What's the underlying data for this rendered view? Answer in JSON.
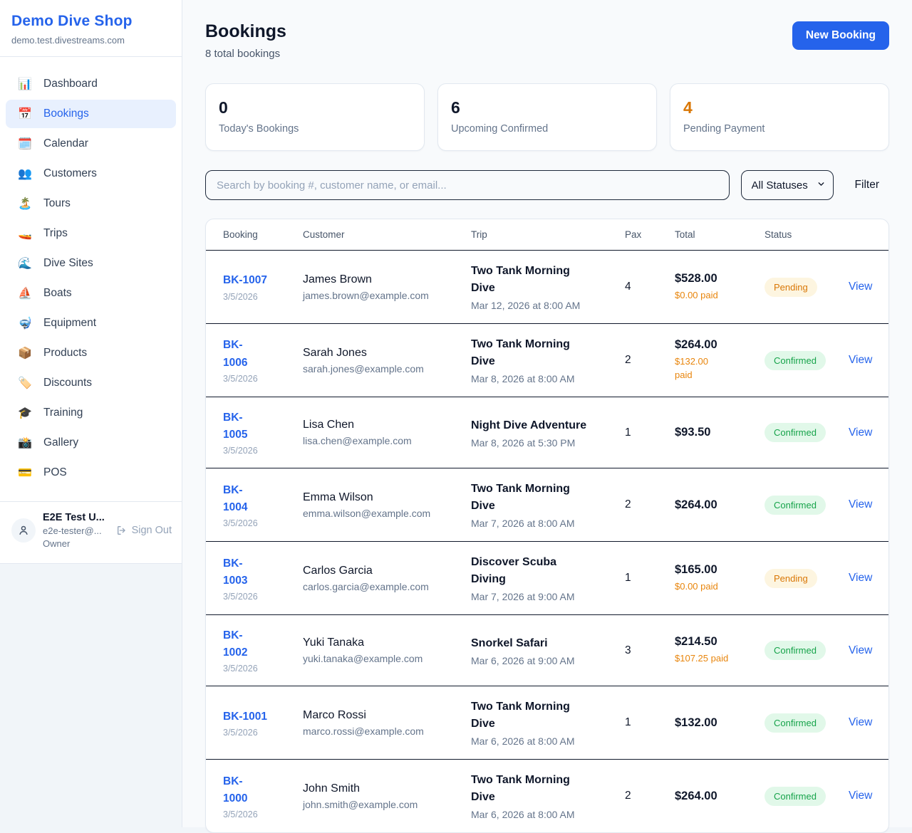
{
  "sidebar": {
    "brand": "Demo Dive Shop",
    "domain": "demo.test.divestreams.com",
    "items": [
      {
        "icon": "📊",
        "icon_name": "bar-chart-icon",
        "label": "Dashboard",
        "active": false
      },
      {
        "icon": "📅",
        "icon_name": "calendar-icon",
        "label": "Bookings",
        "active": true
      },
      {
        "icon": "🗓️",
        "icon_name": "spiral-calendar-icon",
        "label": "Calendar",
        "active": false
      },
      {
        "icon": "👥",
        "icon_name": "people-icon",
        "label": "Customers",
        "active": false
      },
      {
        "icon": "🏝️",
        "icon_name": "island-icon",
        "label": "Tours",
        "active": false
      },
      {
        "icon": "🚤",
        "icon_name": "speedboat-icon",
        "label": "Trips",
        "active": false
      },
      {
        "icon": "🌊",
        "icon_name": "wave-icon",
        "label": "Dive Sites",
        "active": false
      },
      {
        "icon": "⛵",
        "icon_name": "sailboat-icon",
        "label": "Boats",
        "active": false
      },
      {
        "icon": "🤿",
        "icon_name": "diving-mask-icon",
        "label": "Equipment",
        "active": false
      },
      {
        "icon": "📦",
        "icon_name": "package-icon",
        "label": "Products",
        "active": false
      },
      {
        "icon": "🏷️",
        "icon_name": "label-icon",
        "label": "Discounts",
        "active": false
      },
      {
        "icon": "🎓",
        "icon_name": "graduation-cap-icon",
        "label": "Training",
        "active": false
      },
      {
        "icon": "📸",
        "icon_name": "camera-icon",
        "label": "Gallery",
        "active": false
      },
      {
        "icon": "💳",
        "icon_name": "credit-card-icon",
        "label": "POS",
        "active": false
      }
    ],
    "user": {
      "name": "E2E Test U...",
      "email": "e2e-tester@...",
      "role": "Owner",
      "sign_out_label": "Sign Out"
    }
  },
  "header": {
    "title": "Bookings",
    "subtitle": "8 total bookings",
    "new_booking_label": "New Booking"
  },
  "stats": [
    {
      "value": "0",
      "label": "Today's Bookings",
      "value_color": "#0f172a"
    },
    {
      "value": "6",
      "label": "Upcoming Confirmed",
      "value_color": "#0f172a"
    },
    {
      "value": "4",
      "label": "Pending Payment",
      "value_color": "#d97706"
    }
  ],
  "filters": {
    "search_placeholder": "Search by booking #, customer name, or email...",
    "status_selected": "All Statuses",
    "filter_label": "Filter"
  },
  "table": {
    "columns": [
      "Booking",
      "Customer",
      "Trip",
      "Pax",
      "Total",
      "Status"
    ],
    "view_label": "View",
    "rows": [
      {
        "id": "BK-1007",
        "date": "3/5/2026",
        "customer": "James Brown",
        "email": "james.brown@example.com",
        "trip": "Two Tank Morning Dive",
        "trip_time": "Mar 12, 2026 at 8:00 AM",
        "pax": "4",
        "total": "$528.00",
        "paid": "$0.00 paid",
        "status": "Pending"
      },
      {
        "id": "BK-\n1006",
        "date": "3/5/2026",
        "customer": "Sarah Jones",
        "email": "sarah.jones@example.com",
        "trip": "Two Tank Morning Dive",
        "trip_time": "Mar 8, 2026 at 8:00 AM",
        "pax": "2",
        "total": "$264.00",
        "paid": "$132.00\npaid",
        "status": "Confirmed"
      },
      {
        "id": "BK-\n1005",
        "date": "3/5/2026",
        "customer": "Lisa Chen",
        "email": "lisa.chen@example.com",
        "trip": "Night Dive Adventure",
        "trip_time": "Mar 8, 2026 at 5:30 PM",
        "pax": "1",
        "total": "$93.50",
        "paid": "",
        "status": "Confirmed"
      },
      {
        "id": "BK-\n1004",
        "date": "3/5/2026",
        "customer": "Emma Wilson",
        "email": "emma.wilson@example.com",
        "trip": "Two Tank Morning Dive",
        "trip_time": "Mar 7, 2026 at 8:00 AM",
        "pax": "2",
        "total": "$264.00",
        "paid": "",
        "status": "Confirmed"
      },
      {
        "id": "BK-\n1003",
        "date": "3/5/2026",
        "customer": "Carlos Garcia",
        "email": "carlos.garcia@example.com",
        "trip": "Discover Scuba Diving",
        "trip_time": "Mar 7, 2026 at 9:00 AM",
        "pax": "1",
        "total": "$165.00",
        "paid": "$0.00 paid",
        "status": "Pending"
      },
      {
        "id": "BK-\n1002",
        "date": "3/5/2026",
        "customer": "Yuki Tanaka",
        "email": "yuki.tanaka@example.com",
        "trip": "Snorkel Safari",
        "trip_time": "Mar 6, 2026 at 9:00 AM",
        "pax": "3",
        "total": "$214.50",
        "paid": "$107.25 paid",
        "status": "Confirmed"
      },
      {
        "id": "BK-1001",
        "date": "3/5/2026",
        "customer": "Marco Rossi",
        "email": "marco.rossi@example.com",
        "trip": "Two Tank Morning Dive",
        "trip_time": "Mar 6, 2026 at 8:00 AM",
        "pax": "1",
        "total": "$132.00",
        "paid": "",
        "status": "Confirmed"
      },
      {
        "id": "BK-\n1000",
        "date": "3/5/2026",
        "customer": "John Smith",
        "email": "john.smith@example.com",
        "trip": "Two Tank Morning Dive",
        "trip_time": "Mar 6, 2026 at 8:00 AM",
        "pax": "2",
        "total": "$264.00",
        "paid": "",
        "status": "Confirmed"
      }
    ]
  },
  "colors": {
    "accent_blue": "#2563eb",
    "pending_text": "#d97706",
    "pending_bg": "#fdf5e0",
    "confirmed_text": "#16a34a",
    "confirmed_bg": "#e1f8e9",
    "paid_orange": "#e8850c"
  }
}
